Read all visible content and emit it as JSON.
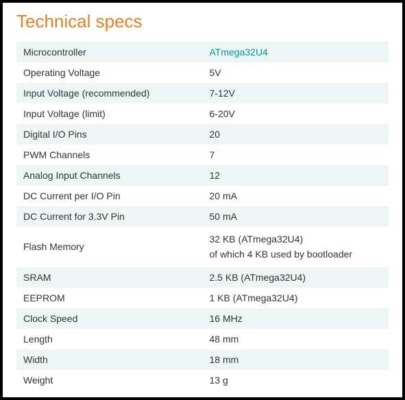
{
  "title": "Technical specs",
  "title_color": "#e67e22",
  "link_color": "#009999",
  "row_odd_bg": "#eef5f5",
  "row_even_bg": "#ffffff",
  "text_color": "#333333",
  "border_color": "#000000",
  "specs": [
    {
      "label": "Microcontroller",
      "value": "ATmega32U4",
      "is_link": true
    },
    {
      "label": "Operating Voltage",
      "value": "5V"
    },
    {
      "label": "Input Voltage (recommended)",
      "value": "7-12V"
    },
    {
      "label": "Input Voltage (limit)",
      "value": "6-20V"
    },
    {
      "label": "Digital I/O Pins",
      "value": "20"
    },
    {
      "label": "PWM Channels",
      "value": "7"
    },
    {
      "label": "Analog Input Channels",
      "value": "12"
    },
    {
      "label": "DC Current per I/O Pin",
      "value": "20 mA"
    },
    {
      "label": "DC Current for 3.3V Pin",
      "value": "50 mA"
    },
    {
      "label": "Flash Memory",
      "value": "32 KB (ATmega32U4)\nof which 4 KB used by bootloader",
      "multiline": true
    },
    {
      "label": "SRAM",
      "value": "2.5 KB (ATmega32U4)"
    },
    {
      "label": "EEPROM",
      "value": "1 KB (ATmega32U4)"
    },
    {
      "label": "Clock Speed",
      "value": "16 MHz"
    },
    {
      "label": "Length",
      "value": "48 mm"
    },
    {
      "label": "Width",
      "value": "18 mm"
    },
    {
      "label": "Weight",
      "value": "13 g"
    }
  ]
}
